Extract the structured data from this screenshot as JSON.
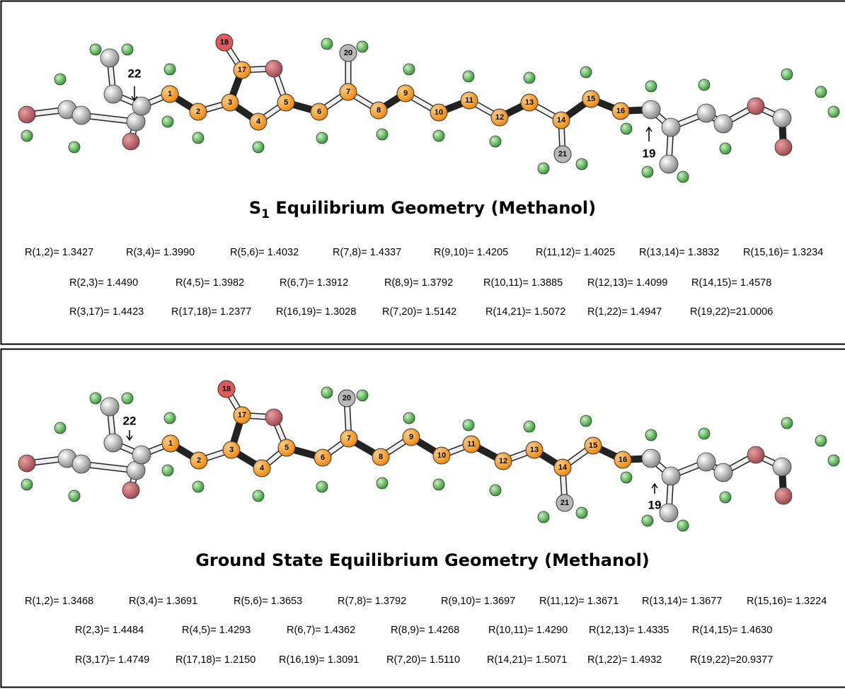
{
  "panels": [
    {
      "title": [
        "S",
        "1",
        " Equilibrium Geometry (Methanol)"
      ],
      "atoms": [
        "1",
        "2",
        "3",
        "4",
        "5",
        "6",
        "7",
        "8",
        "9",
        "10",
        "11",
        "12",
        "13",
        "14",
        "15",
        "16",
        "17",
        "18",
        "20",
        "21"
      ],
      "callouts": [
        "22",
        "19"
      ],
      "bonds": [
        [
          "R(1,2)= 1.3427",
          "R(3,4)= 1.3990",
          "R(5,6)= 1.4032",
          "R(7,8)= 1.4337",
          "R(9,10)= 1.4205",
          "R(11,12)= 1.4025",
          "R(13,14)= 1.3832",
          "R(15,16)= 1.3234"
        ],
        [
          "R(2,3)= 1.4490",
          "R(4,5)= 1.3982",
          "R(6,7)= 1.3912",
          "R(8,9)= 1.3792",
          "R(10,11)= 1.3885",
          "R(12,13)= 1.4099",
          "R(14,15)= 1.4578"
        ],
        [
          "R(3,17)= 1.4423",
          "R(17,18)= 1.2377",
          "R(16,19)= 1.3028",
          "R(7,20)= 1.5142",
          "R(14,21)= 1.5072",
          "R(1,22)= 1.4947",
          "R(19,22)=21.0006"
        ]
      ]
    },
    {
      "title": [
        "Ground State Equilibrium Geometry (Methanol)"
      ],
      "atoms": [
        "1",
        "2",
        "3",
        "4",
        "5",
        "6",
        "7",
        "8",
        "9",
        "10",
        "11",
        "12",
        "13",
        "14",
        "15",
        "16",
        "17",
        "18",
        "20",
        "21"
      ],
      "callouts": [
        "22",
        "19"
      ],
      "bonds": [
        [
          "R(1,2)= 1.3468",
          "R(3,4)= 1.3691",
          "R(5,6)= 1.3653",
          "R(7,8)= 1.3792",
          "R(9,10)= 1.3697",
          "R(11,12)= 1.3671",
          "R(13,14)= 1.3677",
          "R(15,16)= 1.3224"
        ],
        [
          "R(2,3)= 1.4484",
          "R(4,5)= 1.4293",
          "R(6,7)= 1.4362",
          "R(8,9)= 1.4268",
          "R(10,11)= 1.4290",
          "R(12,13)= 1.4335",
          "R(14,15)= 1.4630"
        ],
        [
          "R(3,17)= 1.4749",
          "R(17,18)= 1.2150",
          "R(16,19)= 1.3091",
          "R(7,20)= 1.5110",
          "R(14,21)= 1.5071",
          "R(1,22)= 1.4932",
          "R(19,22)=20.9377"
        ]
      ]
    }
  ]
}
